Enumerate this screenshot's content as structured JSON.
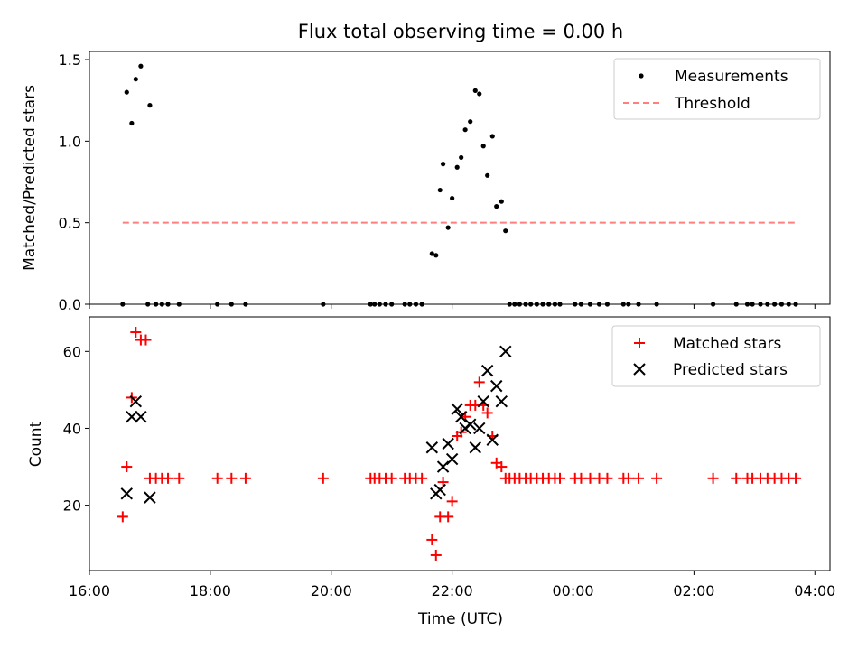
{
  "figure": {
    "title": "Flux total observing time = 0.00 h",
    "xlabel": "Time (UTC)"
  },
  "chart_data": [
    {
      "type": "scatter",
      "title": "Flux total observing time = 0.00 h",
      "ylabel": "Matched/Predicted stars",
      "xlim": [
        "16:00",
        "04:15"
      ],
      "ylim": [
        0,
        1.55
      ],
      "x_ticks": [
        "16:00",
        "18:00",
        "20:00",
        "22:00",
        "00:00",
        "02:00",
        "04:00"
      ],
      "y_ticks": [
        "0.0",
        "0.5",
        "1.0",
        "1.5"
      ],
      "legend_position": "top-right",
      "series": [
        {
          "name": "Measurements",
          "color": "#000000",
          "marker": "dot",
          "points": [
            [
              "16:33",
              0
            ],
            [
              "16:37",
              1.3
            ],
            [
              "16:42",
              1.11
            ],
            [
              "16:46",
              1.38
            ],
            [
              "16:51",
              1.46
            ],
            [
              "17:00",
              1.22
            ],
            [
              "16:58",
              0
            ],
            [
              "17:06",
              0
            ],
            [
              "17:12",
              0
            ],
            [
              "17:18",
              0
            ],
            [
              "17:29",
              0
            ],
            [
              "18:07",
              0
            ],
            [
              "18:21",
              0
            ],
            [
              "18:35",
              0
            ],
            [
              "19:52",
              0
            ],
            [
              "20:39",
              0
            ],
            [
              "20:43",
              0
            ],
            [
              "20:48",
              0
            ],
            [
              "20:54",
              0
            ],
            [
              "21:00",
              0
            ],
            [
              "21:13",
              0
            ],
            [
              "21:18",
              0
            ],
            [
              "21:24",
              0
            ],
            [
              "21:30",
              0
            ],
            [
              "21:40",
              0.31
            ],
            [
              "21:44",
              0.3
            ],
            [
              "21:48",
              0.7
            ],
            [
              "21:51",
              0.86
            ],
            [
              "21:56",
              0.47
            ],
            [
              "22:00",
              0.65
            ],
            [
              "22:05",
              0.84
            ],
            [
              "22:09",
              0.9
            ],
            [
              "22:13",
              1.07
            ],
            [
              "22:18",
              1.12
            ],
            [
              "22:23",
              1.31
            ],
            [
              "22:27",
              1.29
            ],
            [
              "22:31",
              0.97
            ],
            [
              "22:35",
              0.79
            ],
            [
              "22:40",
              1.03
            ],
            [
              "22:44",
              0.6
            ],
            [
              "22:49",
              0.63
            ],
            [
              "22:53",
              0.45
            ],
            [
              "22:57",
              0
            ],
            [
              "23:02",
              0
            ],
            [
              "23:07",
              0
            ],
            [
              "23:13",
              0
            ],
            [
              "23:18",
              0
            ],
            [
              "23:24",
              0
            ],
            [
              "23:30",
              0
            ],
            [
              "23:36",
              0
            ],
            [
              "23:42",
              0
            ],
            [
              "23:47",
              0
            ],
            [
              "00:02",
              0
            ],
            [
              "00:08",
              0
            ],
            [
              "00:17",
              0
            ],
            [
              "00:26",
              0
            ],
            [
              "00:34",
              0
            ],
            [
              "00:50",
              0
            ],
            [
              "00:55",
              0
            ],
            [
              "01:05",
              0
            ],
            [
              "01:23",
              0
            ],
            [
              "02:19",
              0
            ],
            [
              "02:42",
              0
            ],
            [
              "02:53",
              0
            ],
            [
              "02:58",
              0
            ],
            [
              "03:06",
              0
            ],
            [
              "03:13",
              0
            ],
            [
              "03:20",
              0
            ],
            [
              "03:27",
              0
            ],
            [
              "03:34",
              0
            ],
            [
              "03:41",
              0
            ]
          ]
        },
        {
          "name": "Threshold",
          "color": "#ff7f7f",
          "style": "dashed",
          "points": [
            [
              "16:33",
              0.5
            ],
            [
              "03:41",
              0.5
            ]
          ]
        }
      ]
    },
    {
      "type": "scatter",
      "ylabel": "Count",
      "xlabel": "Time (UTC)",
      "xlim": [
        "16:00",
        "04:15"
      ],
      "ylim": [
        3,
        69
      ],
      "x_ticks": [
        "16:00",
        "18:00",
        "20:00",
        "22:00",
        "00:00",
        "02:00",
        "04:00"
      ],
      "y_ticks": [
        "20",
        "40",
        "60"
      ],
      "legend_position": "top-right",
      "series": [
        {
          "name": "Matched stars",
          "color": "#ff0000",
          "marker": "plus",
          "points": [
            [
              "16:33",
              17
            ],
            [
              "16:37",
              30
            ],
            [
              "16:42",
              48
            ],
            [
              "16:46",
              65
            ],
            [
              "16:51",
              63
            ],
            [
              "16:56",
              63
            ],
            [
              "17:00",
              27
            ],
            [
              "17:06",
              27
            ],
            [
              "17:12",
              27
            ],
            [
              "17:18",
              27
            ],
            [
              "17:29",
              27
            ],
            [
              "18:07",
              27
            ],
            [
              "18:21",
              27
            ],
            [
              "18:35",
              27
            ],
            [
              "19:52",
              27
            ],
            [
              "20:39",
              27
            ],
            [
              "20:43",
              27
            ],
            [
              "20:48",
              27
            ],
            [
              "20:54",
              27
            ],
            [
              "21:00",
              27
            ],
            [
              "21:13",
              27
            ],
            [
              "21:18",
              27
            ],
            [
              "21:24",
              27
            ],
            [
              "21:30",
              27
            ],
            [
              "21:40",
              11
            ],
            [
              "21:44",
              7
            ],
            [
              "21:48",
              17
            ],
            [
              "21:51",
              26
            ],
            [
              "21:56",
              17
            ],
            [
              "22:00",
              21
            ],
            [
              "22:05",
              38
            ],
            [
              "22:09",
              39
            ],
            [
              "22:13",
              43
            ],
            [
              "22:18",
              46
            ],
            [
              "22:23",
              46
            ],
            [
              "22:27",
              52
            ],
            [
              "22:31",
              46
            ],
            [
              "22:35",
              44
            ],
            [
              "22:40",
              38
            ],
            [
              "22:44",
              31
            ],
            [
              "22:49",
              30
            ],
            [
              "22:53",
              27
            ],
            [
              "22:57",
              27
            ],
            [
              "23:02",
              27
            ],
            [
              "23:07",
              27
            ],
            [
              "23:13",
              27
            ],
            [
              "23:18",
              27
            ],
            [
              "23:24",
              27
            ],
            [
              "23:30",
              27
            ],
            [
              "23:36",
              27
            ],
            [
              "23:42",
              27
            ],
            [
              "23:47",
              27
            ],
            [
              "00:02",
              27
            ],
            [
              "00:08",
              27
            ],
            [
              "00:17",
              27
            ],
            [
              "00:26",
              27
            ],
            [
              "00:34",
              27
            ],
            [
              "00:50",
              27
            ],
            [
              "00:55",
              27
            ],
            [
              "01:05",
              27
            ],
            [
              "01:23",
              27
            ],
            [
              "02:19",
              27
            ],
            [
              "02:42",
              27
            ],
            [
              "02:53",
              27
            ],
            [
              "02:58",
              27
            ],
            [
              "03:06",
              27
            ],
            [
              "03:13",
              27
            ],
            [
              "03:20",
              27
            ],
            [
              "03:27",
              27
            ],
            [
              "03:34",
              27
            ],
            [
              "03:41",
              27
            ]
          ]
        },
        {
          "name": "Predicted stars",
          "color": "#000000",
          "marker": "x",
          "points": [
            [
              "16:37",
              23
            ],
            [
              "16:42",
              43
            ],
            [
              "16:46",
              47
            ],
            [
              "16:51",
              43
            ],
            [
              "17:00",
              22
            ],
            [
              "21:40",
              35
            ],
            [
              "21:44",
              23
            ],
            [
              "21:48",
              24
            ],
            [
              "21:51",
              30
            ],
            [
              "21:56",
              36
            ],
            [
              "22:00",
              32
            ],
            [
              "22:05",
              45
            ],
            [
              "22:09",
              43
            ],
            [
              "22:13",
              40
            ],
            [
              "22:18",
              41
            ],
            [
              "22:23",
              35
            ],
            [
              "22:27",
              40
            ],
            [
              "22:31",
              47
            ],
            [
              "22:35",
              55
            ],
            [
              "22:40",
              37
            ],
            [
              "22:44",
              51
            ],
            [
              "22:49",
              47
            ],
            [
              "22:53",
              60
            ]
          ]
        }
      ]
    }
  ]
}
